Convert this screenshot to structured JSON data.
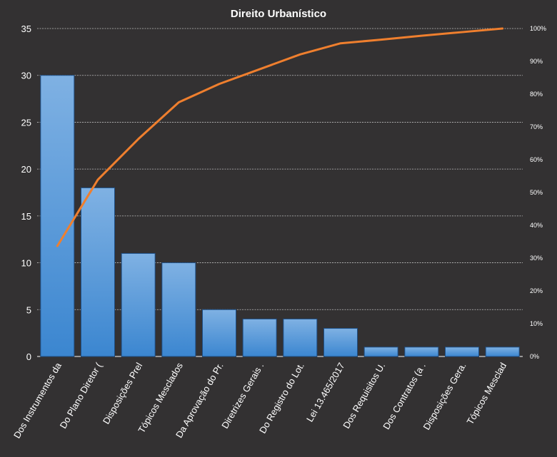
{
  "chart_data": {
    "type": "bar",
    "title": "Direito  Urbanístico",
    "categories": [
      "Dos Instrumentos  da",
      "Do Plano Diretor (",
      "Disposições Prel",
      "Tópicos Mesclados",
      "Da Aprovação do Pr.",
      "Diretrizes Gerais  .",
      "Do Registro do Lot.",
      "Lei 13.465/2017",
      "Dos Requisitos U.",
      "Dos Contratos (a .",
      "Disposições Gera.",
      "Tópicos Mesclad"
    ],
    "series": [
      {
        "type": "bar",
        "values": [
          30,
          18,
          11,
          10,
          5,
          4,
          4,
          3,
          1,
          1,
          1,
          1
        ]
      },
      {
        "type": "line",
        "axis": "right",
        "values": [
          33.7,
          53.9,
          66.3,
          77.5,
          83.1,
          87.6,
          92.1,
          95.5,
          96.6,
          97.8,
          98.9,
          100
        ]
      }
    ],
    "y_left": {
      "min": 0,
      "max": 35,
      "ticks": [
        "0",
        "5",
        "10",
        "15",
        "20",
        "25",
        "30",
        "35"
      ]
    },
    "y_right": {
      "min": 0,
      "max": 100,
      "ticks": [
        "0%",
        "10%",
        "20%",
        "30%",
        "40%",
        "50%",
        "60%",
        "70%",
        "80%",
        "90%",
        "100%"
      ]
    },
    "grid": true,
    "legend": "none",
    "colors": {
      "background": "#333132",
      "bar_top": "#7fb1e3",
      "bar_bottom": "#3b86d0",
      "bar_edge": "#1e4f86",
      "line": "#ef7f2e",
      "text": "#ffffff",
      "grid": "#bfbfbf"
    }
  }
}
